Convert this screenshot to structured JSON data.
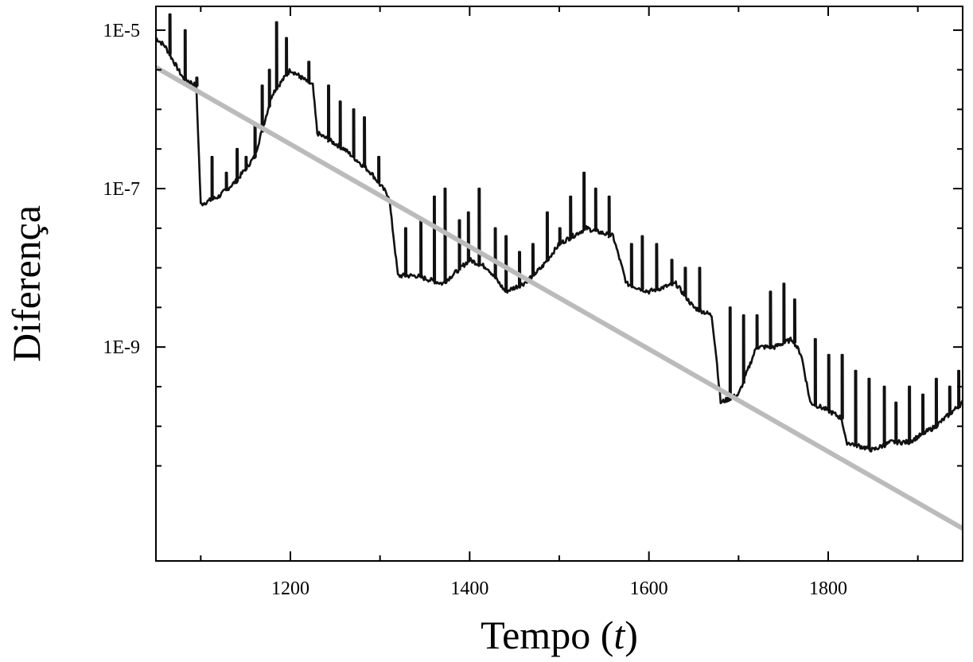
{
  "chart_data": {
    "type": "line",
    "xlabel": "Tempo",
    "xlabel_var": "t",
    "ylabel": "Diferença",
    "xlim": [
      1050,
      1950
    ],
    "ylim_log10": [
      -11.7,
      -4.7
    ],
    "y_scale": "log",
    "x_ticks": [
      1200,
      1400,
      1600,
      1800
    ],
    "x_tick_labels": [
      "1200",
      "1400",
      "1600",
      "1800"
    ],
    "x_minor_ticks": [
      1100,
      1300,
      1500,
      1700,
      1900
    ],
    "y_ticks_log10": [
      -5,
      -7,
      -9
    ],
    "y_tick_labels": [
      "1E-5",
      "1E-7",
      "1E-9"
    ],
    "y_minor_ticks_log10": [
      -5.5,
      -6,
      -6.5,
      -7.5,
      -8,
      -8.5,
      -9.5,
      -10,
      -10.5
    ],
    "grid": false,
    "series": [
      {
        "color": "#111111",
        "baseline": [
          [
            1050,
            -5.1
          ],
          [
            1060,
            -5.2
          ],
          [
            1080,
            -5.6
          ],
          [
            1095,
            -5.7
          ],
          [
            1100,
            -7.2
          ],
          [
            1120,
            -7.1
          ],
          [
            1140,
            -6.9
          ],
          [
            1160,
            -6.6
          ],
          [
            1180,
            -5.8
          ],
          [
            1200,
            -5.5
          ],
          [
            1225,
            -5.7
          ],
          [
            1230,
            -6.3
          ],
          [
            1260,
            -6.5
          ],
          [
            1290,
            -6.8
          ],
          [
            1310,
            -7.1
          ],
          [
            1315,
            -7.6
          ],
          [
            1320,
            -8.1
          ],
          [
            1340,
            -8.1
          ],
          [
            1370,
            -8.2
          ],
          [
            1400,
            -7.9
          ],
          [
            1420,
            -8.0
          ],
          [
            1440,
            -8.3
          ],
          [
            1460,
            -8.2
          ],
          [
            1480,
            -8.0
          ],
          [
            1500,
            -7.7
          ],
          [
            1530,
            -7.5
          ],
          [
            1560,
            -7.6
          ],
          [
            1575,
            -8.2
          ],
          [
            1600,
            -8.3
          ],
          [
            1630,
            -8.2
          ],
          [
            1650,
            -8.5
          ],
          [
            1670,
            -8.6
          ],
          [
            1675,
            -9.1
          ],
          [
            1680,
            -9.7
          ],
          [
            1700,
            -9.6
          ],
          [
            1720,
            -9.0
          ],
          [
            1740,
            -9.0
          ],
          [
            1760,
            -8.9
          ],
          [
            1770,
            -9.1
          ],
          [
            1780,
            -9.7
          ],
          [
            1800,
            -9.8
          ],
          [
            1815,
            -9.9
          ],
          [
            1820,
            -10.2
          ],
          [
            1850,
            -10.3
          ],
          [
            1870,
            -10.2
          ],
          [
            1890,
            -10.2
          ],
          [
            1920,
            -10.0
          ],
          [
            1950,
            -9.7
          ]
        ],
        "spikes": [
          [
            1065,
            -4.8
          ],
          [
            1082,
            -5.0
          ],
          [
            1095,
            -5.6
          ],
          [
            1112,
            -6.6
          ],
          [
            1128,
            -6.8
          ],
          [
            1140,
            -6.5
          ],
          [
            1150,
            -6.6
          ],
          [
            1160,
            -6.2
          ],
          [
            1168,
            -5.7
          ],
          [
            1176,
            -5.5
          ],
          [
            1184,
            -4.9
          ],
          [
            1195,
            -5.1
          ],
          [
            1210,
            -5.6
          ],
          [
            1220,
            -5.4
          ],
          [
            1242,
            -5.7
          ],
          [
            1255,
            -5.9
          ],
          [
            1270,
            -6.0
          ],
          [
            1282,
            -6.1
          ],
          [
            1298,
            -6.6
          ],
          [
            1328,
            -7.5
          ],
          [
            1345,
            -7.4
          ],
          [
            1360,
            -7.1
          ],
          [
            1372,
            -7.0
          ],
          [
            1388,
            -7.4
          ],
          [
            1398,
            -7.3
          ],
          [
            1410,
            -7.0
          ],
          [
            1428,
            -7.5
          ],
          [
            1440,
            -7.6
          ],
          [
            1455,
            -7.8
          ],
          [
            1470,
            -7.7
          ],
          [
            1486,
            -7.3
          ],
          [
            1500,
            -7.5
          ],
          [
            1512,
            -7.1
          ],
          [
            1527,
            -6.8
          ],
          [
            1540,
            -7.0
          ],
          [
            1555,
            -7.1
          ],
          [
            1580,
            -7.7
          ],
          [
            1592,
            -7.6
          ],
          [
            1608,
            -7.7
          ],
          [
            1625,
            -7.9
          ],
          [
            1640,
            -8.0
          ],
          [
            1656,
            -8.0
          ],
          [
            1690,
            -8.5
          ],
          [
            1705,
            -8.6
          ],
          [
            1720,
            -8.6
          ],
          [
            1735,
            -8.3
          ],
          [
            1750,
            -8.2
          ],
          [
            1762,
            -8.4
          ],
          [
            1785,
            -8.9
          ],
          [
            1800,
            -9.1
          ],
          [
            1815,
            -9.1
          ],
          [
            1830,
            -9.3
          ],
          [
            1845,
            -9.4
          ],
          [
            1862,
            -9.5
          ],
          [
            1875,
            -9.7
          ],
          [
            1890,
            -9.5
          ],
          [
            1905,
            -9.6
          ],
          [
            1920,
            -9.4
          ],
          [
            1935,
            -9.5
          ],
          [
            1945,
            -9.3
          ]
        ]
      },
      {
        "color": "#bbbbbb",
        "fit": [
          [
            1050,
            -5.47
          ],
          [
            1950,
            -11.29
          ]
        ]
      }
    ]
  }
}
